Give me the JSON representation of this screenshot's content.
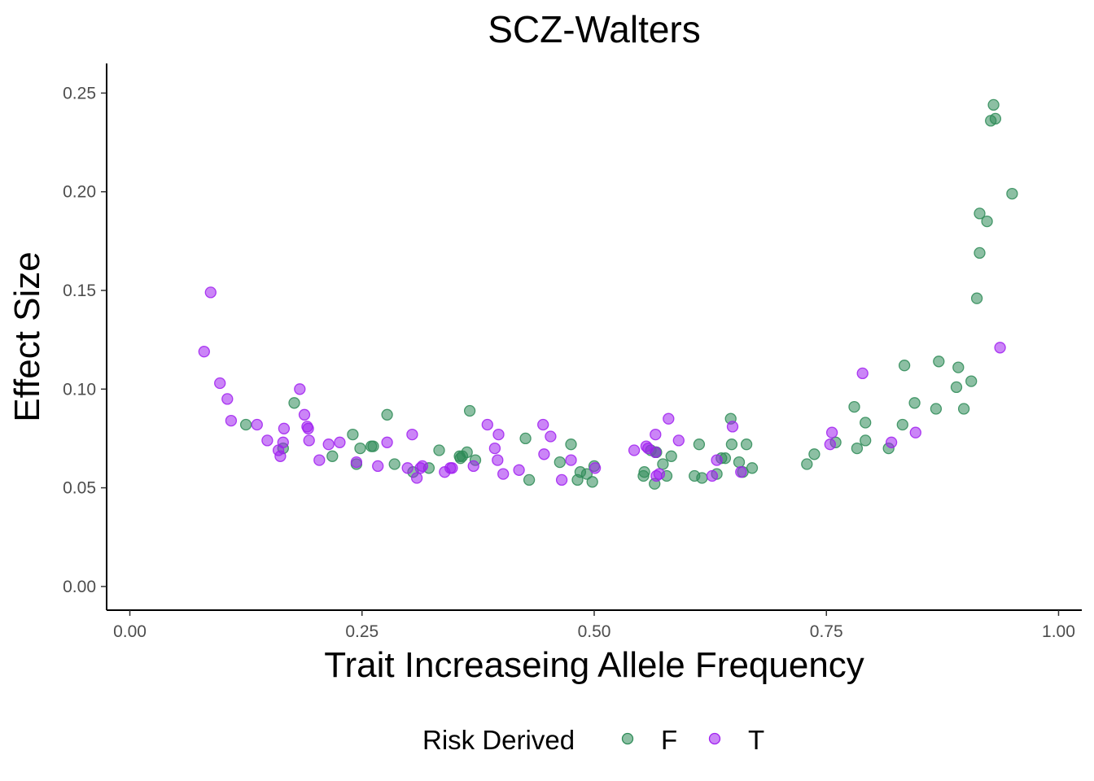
{
  "chart_data": {
    "type": "scatter",
    "title": "SCZ-Walters",
    "xlabel": "Trait Increaseing Allele Frequency",
    "ylabel": "Effect Size",
    "xlim": [
      -0.025,
      1.025
    ],
    "ylim": [
      -0.012,
      0.265
    ],
    "x_ticks": [
      0.0,
      0.25,
      0.5,
      0.75,
      1.0
    ],
    "x_tick_labels": [
      "0.00",
      "0.25",
      "0.50",
      "0.75",
      "1.00"
    ],
    "y_ticks": [
      0.0,
      0.05,
      0.1,
      0.15,
      0.2,
      0.25
    ],
    "y_tick_labels": [
      "0.00",
      "0.05",
      "0.10",
      "0.15",
      "0.20",
      "0.25"
    ],
    "grid": false,
    "legend": {
      "title": "Risk Derived",
      "position": "bottom"
    },
    "series": [
      {
        "name": "F",
        "color": "#2e8b57",
        "points": [
          [
            0.125,
            0.082
          ],
          [
            0.165,
            0.07
          ],
          [
            0.177,
            0.093
          ],
          [
            0.218,
            0.066
          ],
          [
            0.24,
            0.077
          ],
          [
            0.244,
            0.062
          ],
          [
            0.248,
            0.07
          ],
          [
            0.26,
            0.071
          ],
          [
            0.262,
            0.071
          ],
          [
            0.277,
            0.087
          ],
          [
            0.285,
            0.062
          ],
          [
            0.305,
            0.058
          ],
          [
            0.322,
            0.06
          ],
          [
            0.333,
            0.069
          ],
          [
            0.355,
            0.066
          ],
          [
            0.356,
            0.065
          ],
          [
            0.358,
            0.066
          ],
          [
            0.363,
            0.068
          ],
          [
            0.366,
            0.089
          ],
          [
            0.372,
            0.064
          ],
          [
            0.426,
            0.075
          ],
          [
            0.43,
            0.054
          ],
          [
            0.463,
            0.063
          ],
          [
            0.475,
            0.072
          ],
          [
            0.482,
            0.054
          ],
          [
            0.485,
            0.058
          ],
          [
            0.492,
            0.057
          ],
          [
            0.498,
            0.053
          ],
          [
            0.5,
            0.061
          ],
          [
            0.553,
            0.056
          ],
          [
            0.554,
            0.058
          ],
          [
            0.561,
            0.069
          ],
          [
            0.565,
            0.052
          ],
          [
            0.566,
            0.068
          ],
          [
            0.567,
            0.068
          ],
          [
            0.574,
            0.062
          ],
          [
            0.578,
            0.056
          ],
          [
            0.583,
            0.066
          ],
          [
            0.608,
            0.056
          ],
          [
            0.613,
            0.072
          ],
          [
            0.616,
            0.055
          ],
          [
            0.632,
            0.057
          ],
          [
            0.637,
            0.065
          ],
          [
            0.641,
            0.065
          ],
          [
            0.647,
            0.085
          ],
          [
            0.648,
            0.072
          ],
          [
            0.656,
            0.063
          ],
          [
            0.66,
            0.058
          ],
          [
            0.664,
            0.072
          ],
          [
            0.67,
            0.06
          ],
          [
            0.729,
            0.062
          ],
          [
            0.737,
            0.067
          ],
          [
            0.76,
            0.073
          ],
          [
            0.78,
            0.091
          ],
          [
            0.783,
            0.07
          ],
          [
            0.792,
            0.083
          ],
          [
            0.792,
            0.074
          ],
          [
            0.817,
            0.07
          ],
          [
            0.832,
            0.082
          ],
          [
            0.834,
            0.112
          ],
          [
            0.845,
            0.093
          ],
          [
            0.868,
            0.09
          ],
          [
            0.871,
            0.114
          ],
          [
            0.89,
            0.101
          ],
          [
            0.892,
            0.111
          ],
          [
            0.898,
            0.09
          ],
          [
            0.906,
            0.104
          ],
          [
            0.912,
            0.146
          ],
          [
            0.915,
            0.169
          ],
          [
            0.915,
            0.189
          ],
          [
            0.923,
            0.185
          ],
          [
            0.927,
            0.236
          ],
          [
            0.93,
            0.244
          ],
          [
            0.932,
            0.237
          ],
          [
            0.95,
            0.199
          ]
        ]
      },
      {
        "name": "T",
        "color": "#a020f0",
        "points": [
          [
            0.08,
            0.119
          ],
          [
            0.087,
            0.149
          ],
          [
            0.097,
            0.103
          ],
          [
            0.105,
            0.095
          ],
          [
            0.109,
            0.084
          ],
          [
            0.137,
            0.082
          ],
          [
            0.148,
            0.074
          ],
          [
            0.16,
            0.069
          ],
          [
            0.162,
            0.066
          ],
          [
            0.165,
            0.073
          ],
          [
            0.166,
            0.08
          ],
          [
            0.183,
            0.1
          ],
          [
            0.188,
            0.087
          ],
          [
            0.191,
            0.081
          ],
          [
            0.193,
            0.074
          ],
          [
            0.192,
            0.08
          ],
          [
            0.204,
            0.064
          ],
          [
            0.214,
            0.072
          ],
          [
            0.226,
            0.073
          ],
          [
            0.244,
            0.063
          ],
          [
            0.267,
            0.061
          ],
          [
            0.277,
            0.073
          ],
          [
            0.299,
            0.06
          ],
          [
            0.304,
            0.077
          ],
          [
            0.309,
            0.055
          ],
          [
            0.313,
            0.06
          ],
          [
            0.315,
            0.061
          ],
          [
            0.339,
            0.058
          ],
          [
            0.345,
            0.06
          ],
          [
            0.347,
            0.06
          ],
          [
            0.37,
            0.061
          ],
          [
            0.385,
            0.082
          ],
          [
            0.393,
            0.07
          ],
          [
            0.396,
            0.064
          ],
          [
            0.397,
            0.077
          ],
          [
            0.402,
            0.057
          ],
          [
            0.419,
            0.059
          ],
          [
            0.445,
            0.082
          ],
          [
            0.446,
            0.067
          ],
          [
            0.453,
            0.076
          ],
          [
            0.465,
            0.054
          ],
          [
            0.475,
            0.064
          ],
          [
            0.501,
            0.06
          ],
          [
            0.543,
            0.069
          ],
          [
            0.556,
            0.071
          ],
          [
            0.558,
            0.07
          ],
          [
            0.566,
            0.077
          ],
          [
            0.566,
            0.068
          ],
          [
            0.567,
            0.056
          ],
          [
            0.57,
            0.057
          ],
          [
            0.58,
            0.085
          ],
          [
            0.591,
            0.074
          ],
          [
            0.627,
            0.056
          ],
          [
            0.632,
            0.064
          ],
          [
            0.649,
            0.081
          ],
          [
            0.658,
            0.058
          ],
          [
            0.754,
            0.072
          ],
          [
            0.756,
            0.078
          ],
          [
            0.789,
            0.108
          ],
          [
            0.82,
            0.073
          ],
          [
            0.846,
            0.078
          ],
          [
            0.937,
            0.121
          ]
        ]
      }
    ]
  }
}
